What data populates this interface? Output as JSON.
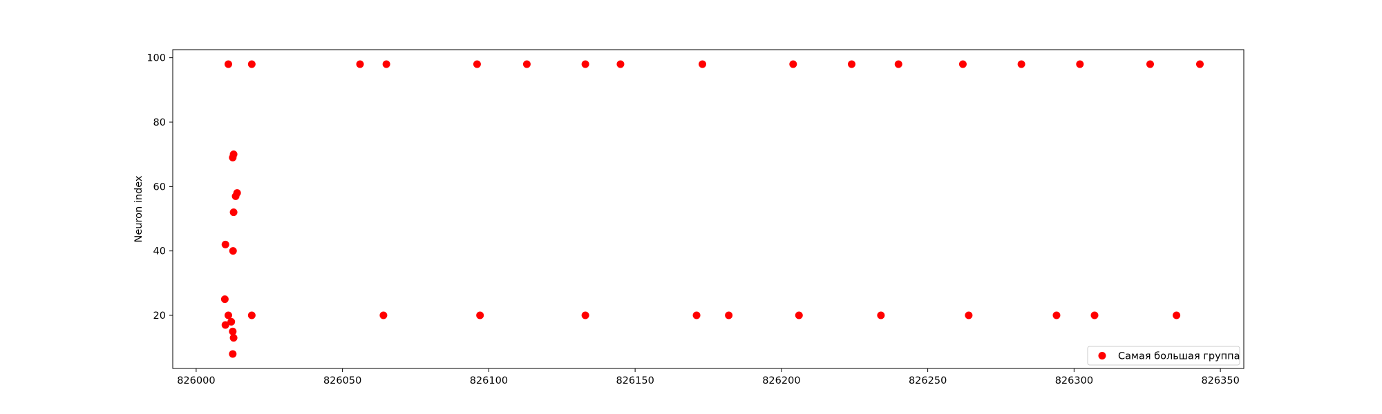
{
  "chart_data": {
    "type": "scatter",
    "title": "",
    "xlabel": "",
    "ylabel": "Neuron index",
    "xlim": [
      825992,
      826358
    ],
    "ylim": [
      3.5,
      102.5
    ],
    "xticks": [
      826000,
      826050,
      826100,
      826150,
      826200,
      826250,
      826300,
      826350
    ],
    "yticks": [
      20,
      40,
      60,
      80,
      100
    ],
    "grid": false,
    "legend_position": "lower-right",
    "series": [
      {
        "name": "Самая большая группа",
        "color": "#ff0000",
        "x": [
          826011,
          826019,
          826056,
          826065,
          826096,
          826113,
          826133,
          826145,
          826173,
          826204,
          826224,
          826240,
          826262,
          826282,
          826302,
          826326,
          826343,
          826012.5,
          826012.8,
          826013.5,
          826014,
          826012.8,
          826010,
          826012.6,
          826009.8,
          826011,
          826019,
          826064,
          826097,
          826133,
          826171,
          826182,
          826206,
          826234,
          826264,
          826294,
          826307,
          826335,
          826012,
          826010,
          826012.5,
          826012.8,
          826012.5
        ],
        "y": [
          98,
          98,
          98,
          98,
          98,
          98,
          98,
          98,
          98,
          98,
          98,
          98,
          98,
          98,
          98,
          98,
          98,
          69,
          70,
          57,
          58,
          52,
          42,
          40,
          25,
          20,
          20,
          20,
          20,
          20,
          20,
          20,
          20,
          20,
          20,
          20,
          20,
          20,
          18,
          17,
          15,
          13,
          8
        ]
      }
    ]
  }
}
